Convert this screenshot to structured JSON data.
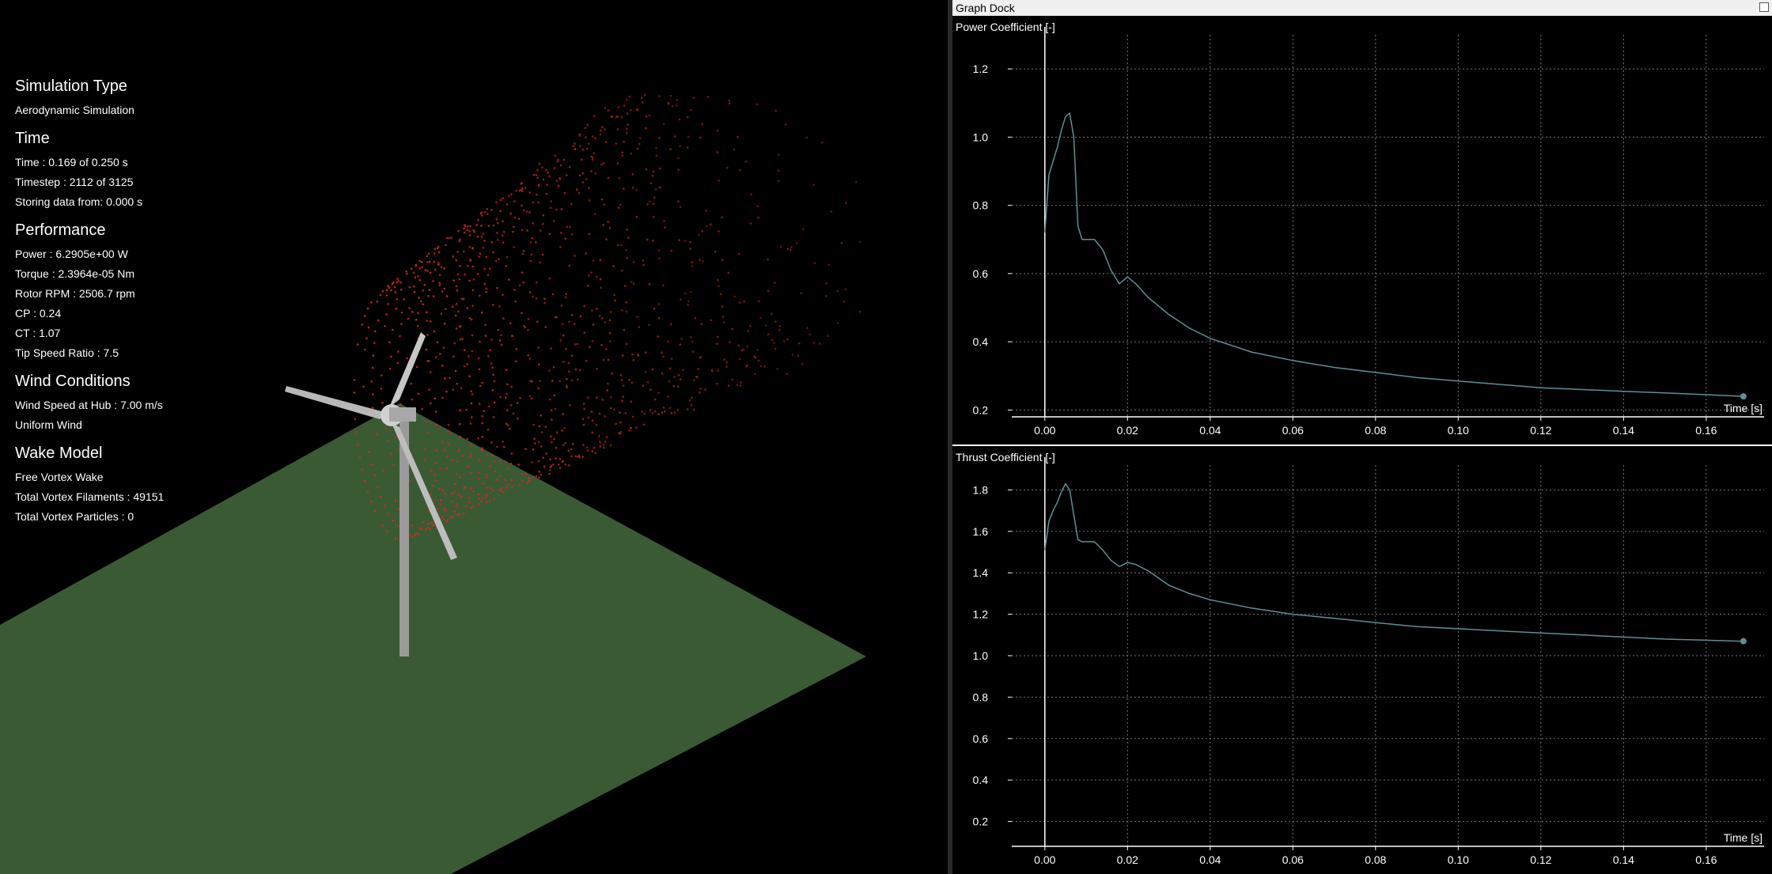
{
  "overlay": {
    "sections": [
      {
        "title": "Simulation Type",
        "lines": [
          "Aerodynamic Simulation"
        ]
      },
      {
        "title": "Time",
        "lines": [
          "Time : 0.169 of 0.250 s",
          "Timestep : 2112 of 3125",
          "Storing data from: 0.000 s"
        ]
      },
      {
        "title": "Performance",
        "lines": [
          "Power : 6.2905e+00 W",
          "Torque : 2.3964e-05 Nm",
          "Rotor RPM : 2506.7 rpm",
          "CP : 0.24",
          "CT : 1.07",
          "Tip Speed Ratio : 7.5"
        ]
      },
      {
        "title": "Wind Conditions",
        "lines": [
          "Wind Speed at Hub : 7.00 m/s",
          "Uniform Wind"
        ]
      },
      {
        "title": "Wake Model",
        "lines": [
          "Free Vortex Wake",
          "Total Vortex Filaments : 49151",
          "Total Vortex Particles : 0"
        ]
      }
    ]
  },
  "scene": {
    "ground_color": "#3a5a34",
    "wake_color": "#d42a1e",
    "tower_color": "#9a9a9a",
    "blade_color": "#c0c0c0"
  },
  "dock": {
    "title": "Graph Dock"
  },
  "colors": {
    "curve": "#5f8f94",
    "grid": "#777777",
    "axis": "#ffffff"
  },
  "chart_data": [
    {
      "type": "line",
      "title": "Power Coefficient [-]",
      "xlabel": "Time [s]",
      "xlim": [
        -0.008,
        0.174
      ],
      "ylim": [
        0.18,
        1.3
      ],
      "xticks": [
        0.0,
        0.02,
        0.04,
        0.06,
        0.08,
        0.1,
        0.12,
        0.14,
        0.16
      ],
      "yticks": [
        0.2,
        0.4,
        0.6,
        0.8,
        1.0,
        1.2
      ],
      "x": [
        0.0,
        0.001,
        0.002,
        0.003,
        0.004,
        0.005,
        0.006,
        0.007,
        0.008,
        0.009,
        0.01,
        0.012,
        0.014,
        0.016,
        0.018,
        0.02,
        0.022,
        0.025,
        0.03,
        0.035,
        0.04,
        0.05,
        0.06,
        0.07,
        0.08,
        0.09,
        0.1,
        0.11,
        0.12,
        0.13,
        0.14,
        0.15,
        0.16,
        0.169
      ],
      "y": [
        0.72,
        0.89,
        0.93,
        0.97,
        1.02,
        1.06,
        1.07,
        1.0,
        0.74,
        0.7,
        0.7,
        0.7,
        0.67,
        0.61,
        0.57,
        0.59,
        0.57,
        0.53,
        0.48,
        0.44,
        0.41,
        0.37,
        0.345,
        0.325,
        0.31,
        0.295,
        0.285,
        0.275,
        0.265,
        0.26,
        0.255,
        0.25,
        0.245,
        0.24
      ]
    },
    {
      "type": "line",
      "title": "Thrust Coefficient [-]",
      "xlabel": "Time [s]",
      "xlim": [
        -0.008,
        0.174
      ],
      "ylim": [
        0.08,
        1.92
      ],
      "xticks": [
        0.0,
        0.02,
        0.04,
        0.06,
        0.08,
        0.1,
        0.12,
        0.14,
        0.16
      ],
      "yticks": [
        0.2,
        0.4,
        0.6,
        0.8,
        1.0,
        1.2,
        1.4,
        1.6,
        1.8
      ],
      "x": [
        0.0,
        0.001,
        0.002,
        0.003,
        0.004,
        0.005,
        0.006,
        0.007,
        0.008,
        0.009,
        0.01,
        0.012,
        0.014,
        0.016,
        0.018,
        0.02,
        0.022,
        0.025,
        0.03,
        0.035,
        0.04,
        0.05,
        0.06,
        0.07,
        0.08,
        0.09,
        0.1,
        0.11,
        0.12,
        0.13,
        0.14,
        0.15,
        0.16,
        0.169
      ],
      "y": [
        1.51,
        1.65,
        1.7,
        1.74,
        1.79,
        1.83,
        1.8,
        1.68,
        1.56,
        1.55,
        1.55,
        1.55,
        1.51,
        1.46,
        1.43,
        1.45,
        1.44,
        1.41,
        1.34,
        1.3,
        1.27,
        1.23,
        1.2,
        1.18,
        1.16,
        1.14,
        1.13,
        1.12,
        1.11,
        1.1,
        1.09,
        1.08,
        1.075,
        1.07
      ]
    }
  ]
}
